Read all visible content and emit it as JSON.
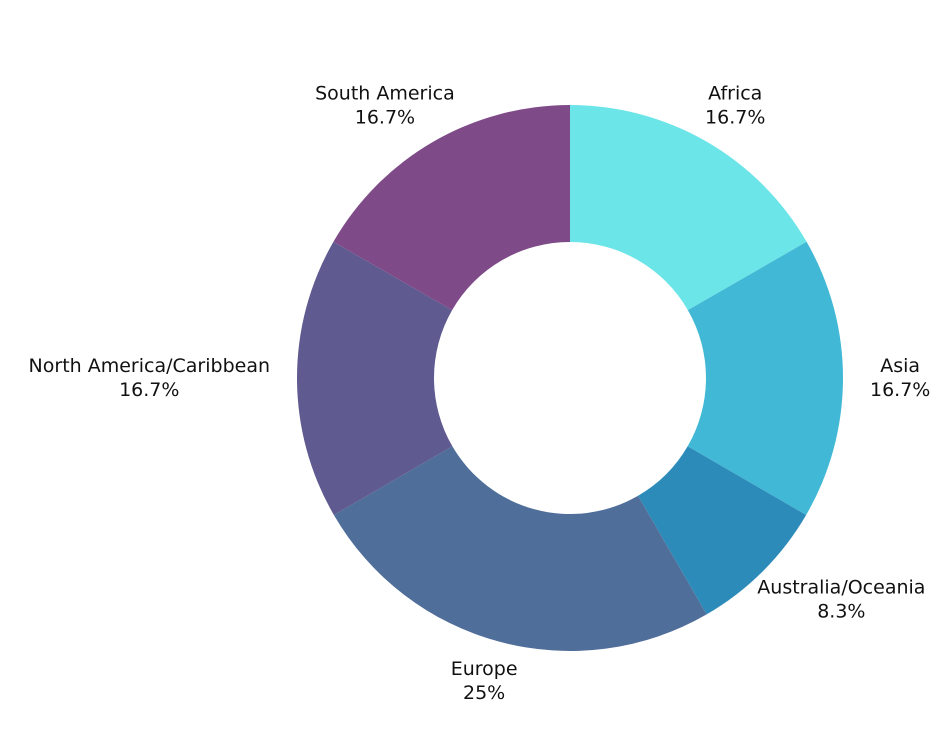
{
  "chart_data": {
    "type": "donut",
    "categories": [
      "Africa",
      "Asia",
      "Australia/Oceania",
      "Europe",
      "North America/Caribbean",
      "South America"
    ],
    "values": [
      16.7,
      16.7,
      8.3,
      25,
      16.7,
      16.7
    ],
    "value_labels": [
      "16.7%",
      "16.7%",
      "8.3%",
      "25%",
      "16.7%",
      "16.7%"
    ],
    "colors": [
      "#6ce5e8",
      "#41b8d5",
      "#2d8bba",
      "#506e9a",
      "#5f5a8f",
      "#7f4a88"
    ]
  }
}
